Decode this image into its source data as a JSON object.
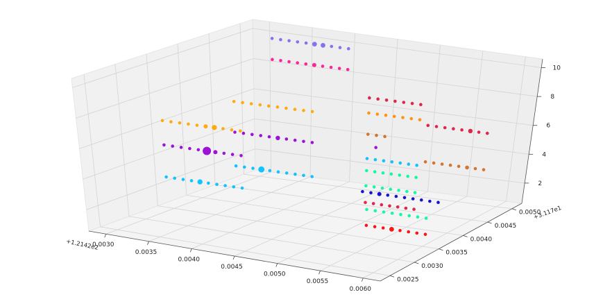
{
  "chart_data": {
    "type": "scatter",
    "projection": "3d",
    "grid": true,
    "axes": {
      "x": {
        "ticks": [
          "0.0030",
          "0.0035",
          "0.0040",
          "0.0045",
          "0.0050",
          "0.0055",
          "0.0060"
        ],
        "offset": "+1.2142e2",
        "range": [
          0.0028,
          0.0062
        ]
      },
      "y": {
        "ticks": [
          "0.0025",
          "0.0030",
          "0.0035",
          "0.0040",
          "0.0045",
          "0.0050"
        ],
        "offset": "+3.117e1",
        "range": [
          0.0023,
          0.0052
        ]
      },
      "z": {
        "ticks": [
          "2",
          "4",
          "6",
          "8",
          "10"
        ],
        "range": [
          0.6,
          10.6
        ]
      }
    },
    "series": [
      {
        "color": "#7b68ee",
        "points": [
          [
            0.0031,
            0.0051,
            9.7
          ],
          [
            0.0032,
            0.0051,
            9.7
          ],
          [
            0.0033,
            0.0051,
            9.7
          ],
          [
            0.0034,
            0.0051,
            9.7
          ],
          [
            0.0035,
            0.0051,
            9.7
          ],
          [
            0.0036,
            0.0051,
            9.7
          ],
          [
            0.0037,
            0.0051,
            9.7
          ],
          [
            0.0038,
            0.0051,
            9.7
          ],
          [
            0.0039,
            0.0051,
            9.7
          ],
          [
            0.004,
            0.0051,
            9.7
          ]
        ],
        "sizes": [
          1,
          1,
          1,
          1,
          1,
          1.5,
          1.5,
          1,
          1,
          1
        ]
      },
      {
        "color": "#ff1493",
        "points": [
          [
            0.0031,
            0.0051,
            8.3
          ],
          [
            0.0032,
            0.0051,
            8.3
          ],
          [
            0.0033,
            0.0051,
            8.3
          ],
          [
            0.0034,
            0.0051,
            8.3
          ],
          [
            0.0035,
            0.0051,
            8.3
          ],
          [
            0.0036,
            0.0051,
            8.3
          ],
          [
            0.0037,
            0.0051,
            8.3
          ],
          [
            0.0038,
            0.0051,
            8.3
          ],
          [
            0.0039,
            0.0051,
            8.3
          ],
          [
            0.004,
            0.0051,
            8.3
          ]
        ],
        "sizes": [
          1,
          1,
          1,
          1,
          1,
          1.3,
          1,
          1,
          1,
          1
        ]
      },
      {
        "color": "#ffa500",
        "points": [
          [
            0.003,
            0.0034,
            6.5
          ],
          [
            0.0031,
            0.0034,
            6.5
          ],
          [
            0.0032,
            0.0034,
            6.5
          ],
          [
            0.0033,
            0.0034,
            6.5
          ],
          [
            0.0034,
            0.0034,
            6.5
          ],
          [
            0.0035,
            0.0034,
            6.5
          ],
          [
            0.0036,
            0.0034,
            6.5
          ],
          [
            0.0037,
            0.0034,
            6.5
          ],
          [
            0.0038,
            0.0034,
            6.5
          ],
          [
            0.0039,
            0.0034,
            6.5
          ]
        ],
        "sizes": [
          1,
          1,
          1,
          1,
          1,
          1.3,
          1.6,
          1,
          1,
          1
        ]
      },
      {
        "color": "#9400d3",
        "points": [
          [
            0.003,
            0.0034,
            4.9
          ],
          [
            0.0031,
            0.0034,
            4.9
          ],
          [
            0.0032,
            0.0034,
            4.9
          ],
          [
            0.0033,
            0.0034,
            4.9
          ],
          [
            0.0034,
            0.0034,
            4.9
          ],
          [
            0.0035,
            0.0034,
            4.9
          ],
          [
            0.0036,
            0.0034,
            4.9
          ],
          [
            0.0037,
            0.0034,
            4.9
          ],
          [
            0.0038,
            0.0034,
            4.9
          ],
          [
            0.0039,
            0.0034,
            4.9
          ]
        ],
        "sizes": [
          1,
          1,
          1,
          1,
          1,
          2.6,
          1.3,
          1,
          1,
          1
        ]
      },
      {
        "color": "#00bfff",
        "points": [
          [
            0.003,
            0.0034,
            2.8
          ],
          [
            0.0031,
            0.0034,
            2.8
          ],
          [
            0.0032,
            0.0034,
            2.8
          ],
          [
            0.0033,
            0.0034,
            2.8
          ],
          [
            0.0034,
            0.0034,
            2.8
          ],
          [
            0.0035,
            0.0034,
            2.8
          ],
          [
            0.0036,
            0.0034,
            2.8
          ],
          [
            0.0037,
            0.0034,
            2.8
          ],
          [
            0.0038,
            0.0034,
            2.8
          ],
          [
            0.0039,
            0.0034,
            2.8
          ]
        ],
        "sizes": [
          1,
          1,
          1,
          1,
          1.6,
          1,
          1,
          1,
          1,
          1
        ]
      },
      {
        "color": "#ffa500",
        "points": [
          [
            0.0037,
            0.0036,
            8.0
          ],
          [
            0.0038,
            0.0036,
            8.0
          ],
          [
            0.0039,
            0.0036,
            8.0
          ],
          [
            0.004,
            0.0036,
            8.0
          ],
          [
            0.0041,
            0.0036,
            8.0
          ],
          [
            0.0042,
            0.0036,
            8.0
          ],
          [
            0.0043,
            0.0036,
            8.0
          ],
          [
            0.0044,
            0.0036,
            8.0
          ],
          [
            0.0045,
            0.0036,
            8.0
          ],
          [
            0.0046,
            0.0036,
            8.0
          ]
        ],
        "sizes": [
          1,
          1,
          1,
          1,
          1,
          1,
          1,
          1,
          1,
          1
        ]
      },
      {
        "color": "#9400d3",
        "points": [
          [
            0.0037,
            0.0036,
            6.0
          ],
          [
            0.0038,
            0.0036,
            6.0
          ],
          [
            0.0039,
            0.0036,
            6.0
          ],
          [
            0.004,
            0.0036,
            6.0
          ],
          [
            0.0041,
            0.0036,
            6.0
          ],
          [
            0.0042,
            0.0036,
            6.0
          ],
          [
            0.0043,
            0.0036,
            6.0
          ],
          [
            0.0044,
            0.0036,
            6.0
          ],
          [
            0.0045,
            0.0036,
            6.0
          ],
          [
            0.0046,
            0.0036,
            6.0
          ]
        ],
        "sizes": [
          1,
          1,
          1,
          1,
          1,
          1.4,
          1,
          1,
          1,
          1
        ]
      },
      {
        "color": "#00bfff",
        "points": [
          [
            0.0037,
            0.0036,
            3.8
          ],
          [
            0.0038,
            0.0036,
            3.8
          ],
          [
            0.0039,
            0.0036,
            3.8
          ],
          [
            0.004,
            0.0036,
            3.8
          ],
          [
            0.0041,
            0.0036,
            3.8
          ],
          [
            0.0042,
            0.0036,
            3.8
          ],
          [
            0.0043,
            0.0036,
            3.8
          ],
          [
            0.0044,
            0.0036,
            3.8
          ],
          [
            0.0045,
            0.0036,
            3.8
          ],
          [
            0.0046,
            0.0036,
            3.8
          ]
        ],
        "sizes": [
          1,
          1,
          1,
          1.9,
          1,
          1,
          1,
          1,
          1,
          1
        ]
      },
      {
        "color": "#dc143c",
        "points": [
          [
            0.0048,
            0.0043,
            8.1
          ],
          [
            0.0049,
            0.0043,
            8.1
          ],
          [
            0.005,
            0.0043,
            8.1
          ],
          [
            0.0051,
            0.0043,
            8.1
          ],
          [
            0.0052,
            0.0043,
            8.1
          ],
          [
            0.0053,
            0.0043,
            8.1
          ],
          [
            0.0054,
            0.0043,
            8.1
          ]
        ],
        "sizes": [
          1,
          1,
          1,
          1,
          1,
          1,
          1
        ]
      },
      {
        "color": "#ff8c00",
        "points": [
          [
            0.0048,
            0.0043,
            7.1
          ],
          [
            0.0049,
            0.0043,
            7.1
          ],
          [
            0.005,
            0.0043,
            7.1
          ],
          [
            0.0051,
            0.0043,
            7.1
          ],
          [
            0.0052,
            0.0043,
            7.1
          ],
          [
            0.0053,
            0.0043,
            7.1
          ],
          [
            0.0054,
            0.0043,
            7.1
          ]
        ],
        "sizes": [
          1,
          1,
          1,
          1,
          1,
          1,
          1
        ]
      },
      {
        "color": "#d2691e",
        "points": [
          [
            0.0048,
            0.0043,
            5.7
          ],
          [
            0.0049,
            0.0043,
            5.7
          ],
          [
            0.005,
            0.0043,
            5.7
          ]
        ],
        "sizes": [
          1,
          1,
          1
        ]
      },
      {
        "color": "#9400d3",
        "points": [
          [
            0.0049,
            0.0043,
            4.9
          ]
        ],
        "sizes": [
          1
        ]
      },
      {
        "color": "#00bfff",
        "points": [
          [
            0.0048,
            0.0043,
            4.1
          ],
          [
            0.0049,
            0.0043,
            4.1
          ],
          [
            0.005,
            0.0043,
            4.1
          ],
          [
            0.0051,
            0.0043,
            4.1
          ],
          [
            0.0052,
            0.0043,
            4.1
          ],
          [
            0.0053,
            0.0043,
            4.1
          ],
          [
            0.0054,
            0.0043,
            4.1
          ]
        ],
        "sizes": [
          1,
          1,
          1,
          1,
          1,
          1,
          1
        ]
      },
      {
        "color": "#00fa9a",
        "points": [
          [
            0.0048,
            0.0043,
            3.3
          ],
          [
            0.0049,
            0.0043,
            3.3
          ],
          [
            0.005,
            0.0043,
            3.3
          ],
          [
            0.0051,
            0.0043,
            3.3
          ],
          [
            0.0052,
            0.0043,
            3.3
          ],
          [
            0.0053,
            0.0043,
            3.3
          ],
          [
            0.0054,
            0.0043,
            3.3
          ]
        ],
        "sizes": [
          1,
          1,
          1,
          1,
          1,
          1,
          1
        ]
      },
      {
        "color": "#00fa9a",
        "points": [
          [
            0.0048,
            0.0043,
            2.3
          ],
          [
            0.0049,
            0.0043,
            2.3
          ],
          [
            0.005,
            0.0043,
            2.3
          ],
          [
            0.0051,
            0.0043,
            2.3
          ],
          [
            0.0052,
            0.0043,
            2.3
          ],
          [
            0.0053,
            0.0043,
            2.3
          ],
          [
            0.0054,
            0.0043,
            2.3
          ]
        ],
        "sizes": [
          1,
          1,
          1,
          1,
          1,
          1,
          1
        ]
      },
      {
        "color": "#dc143c",
        "points": [
          [
            0.0048,
            0.0043,
            1.2
          ],
          [
            0.0049,
            0.0043,
            1.2
          ],
          [
            0.005,
            0.0043,
            1.2
          ],
          [
            0.0051,
            0.0043,
            1.2
          ],
          [
            0.0052,
            0.0043,
            1.2
          ],
          [
            0.0053,
            0.0043,
            1.2
          ],
          [
            0.0054,
            0.0043,
            1.2
          ]
        ],
        "sizes": [
          1,
          1,
          1,
          1,
          1,
          1,
          1
        ]
      },
      {
        "color": "#dc143c",
        "points": [
          [
            0.0055,
            0.0043,
            6.8
          ],
          [
            0.0056,
            0.0043,
            6.8
          ],
          [
            0.0057,
            0.0043,
            6.8
          ],
          [
            0.0058,
            0.0043,
            6.8
          ],
          [
            0.0059,
            0.0043,
            6.8
          ],
          [
            0.006,
            0.0043,
            6.8
          ],
          [
            0.0061,
            0.0043,
            6.8
          ],
          [
            0.0062,
            0.0043,
            6.8
          ]
        ],
        "sizes": [
          1,
          1,
          1,
          1,
          1,
          1.4,
          1,
          1
        ]
      },
      {
        "color": "#d2691e",
        "points": [
          [
            0.0055,
            0.0043,
            4.4
          ],
          [
            0.0056,
            0.0043,
            4.4
          ],
          [
            0.0057,
            0.0043,
            4.4
          ],
          [
            0.0058,
            0.0043,
            4.4
          ],
          [
            0.0059,
            0.0043,
            4.4
          ],
          [
            0.006,
            0.0043,
            4.4
          ],
          [
            0.0061,
            0.0043,
            4.4
          ],
          [
            0.0062,
            0.0043,
            4.4
          ]
        ],
        "sizes": [
          1,
          1,
          1,
          1,
          1,
          1.2,
          1,
          1
        ]
      },
      {
        "color": "#0000cd",
        "points": [
          [
            0.0052,
            0.0036,
            3.3
          ],
          [
            0.0053,
            0.0036,
            3.3
          ],
          [
            0.0054,
            0.0036,
            3.3
          ],
          [
            0.0055,
            0.0036,
            3.3
          ],
          [
            0.0056,
            0.0036,
            3.3
          ],
          [
            0.0057,
            0.0036,
            3.3
          ],
          [
            0.0058,
            0.0036,
            3.3
          ],
          [
            0.0059,
            0.0036,
            3.3
          ],
          [
            0.006,
            0.0036,
            3.3
          ],
          [
            0.0061,
            0.0036,
            3.3
          ]
        ],
        "sizes": [
          1,
          1,
          1.3,
          1,
          1,
          1,
          1,
          1,
          1,
          1
        ]
      },
      {
        "color": "#00fa9a",
        "points": [
          [
            0.0055,
            0.0032,
            3.0
          ],
          [
            0.0056,
            0.0032,
            3.0
          ],
          [
            0.0057,
            0.0032,
            3.0
          ],
          [
            0.0058,
            0.0032,
            3.0
          ],
          [
            0.0059,
            0.0032,
            3.0
          ],
          [
            0.006,
            0.0032,
            3.0
          ],
          [
            0.0061,
            0.0032,
            3.0
          ],
          [
            0.0062,
            0.0032,
            3.0
          ]
        ],
        "sizes": [
          1,
          1,
          1,
          1,
          1,
          1,
          1,
          1
        ]
      },
      {
        "color": "#ff0000",
        "points": [
          [
            0.0055,
            0.0032,
            2.0
          ],
          [
            0.0056,
            0.0032,
            2.0
          ],
          [
            0.0057,
            0.0032,
            2.0
          ],
          [
            0.0058,
            0.0032,
            2.0
          ],
          [
            0.0059,
            0.0032,
            2.0
          ],
          [
            0.006,
            0.0032,
            2.0
          ],
          [
            0.0061,
            0.0032,
            2.0
          ],
          [
            0.0062,
            0.0032,
            2.0
          ]
        ],
        "sizes": [
          1,
          1,
          1,
          1.5,
          1,
          1,
          1,
          1
        ]
      }
    ]
  }
}
